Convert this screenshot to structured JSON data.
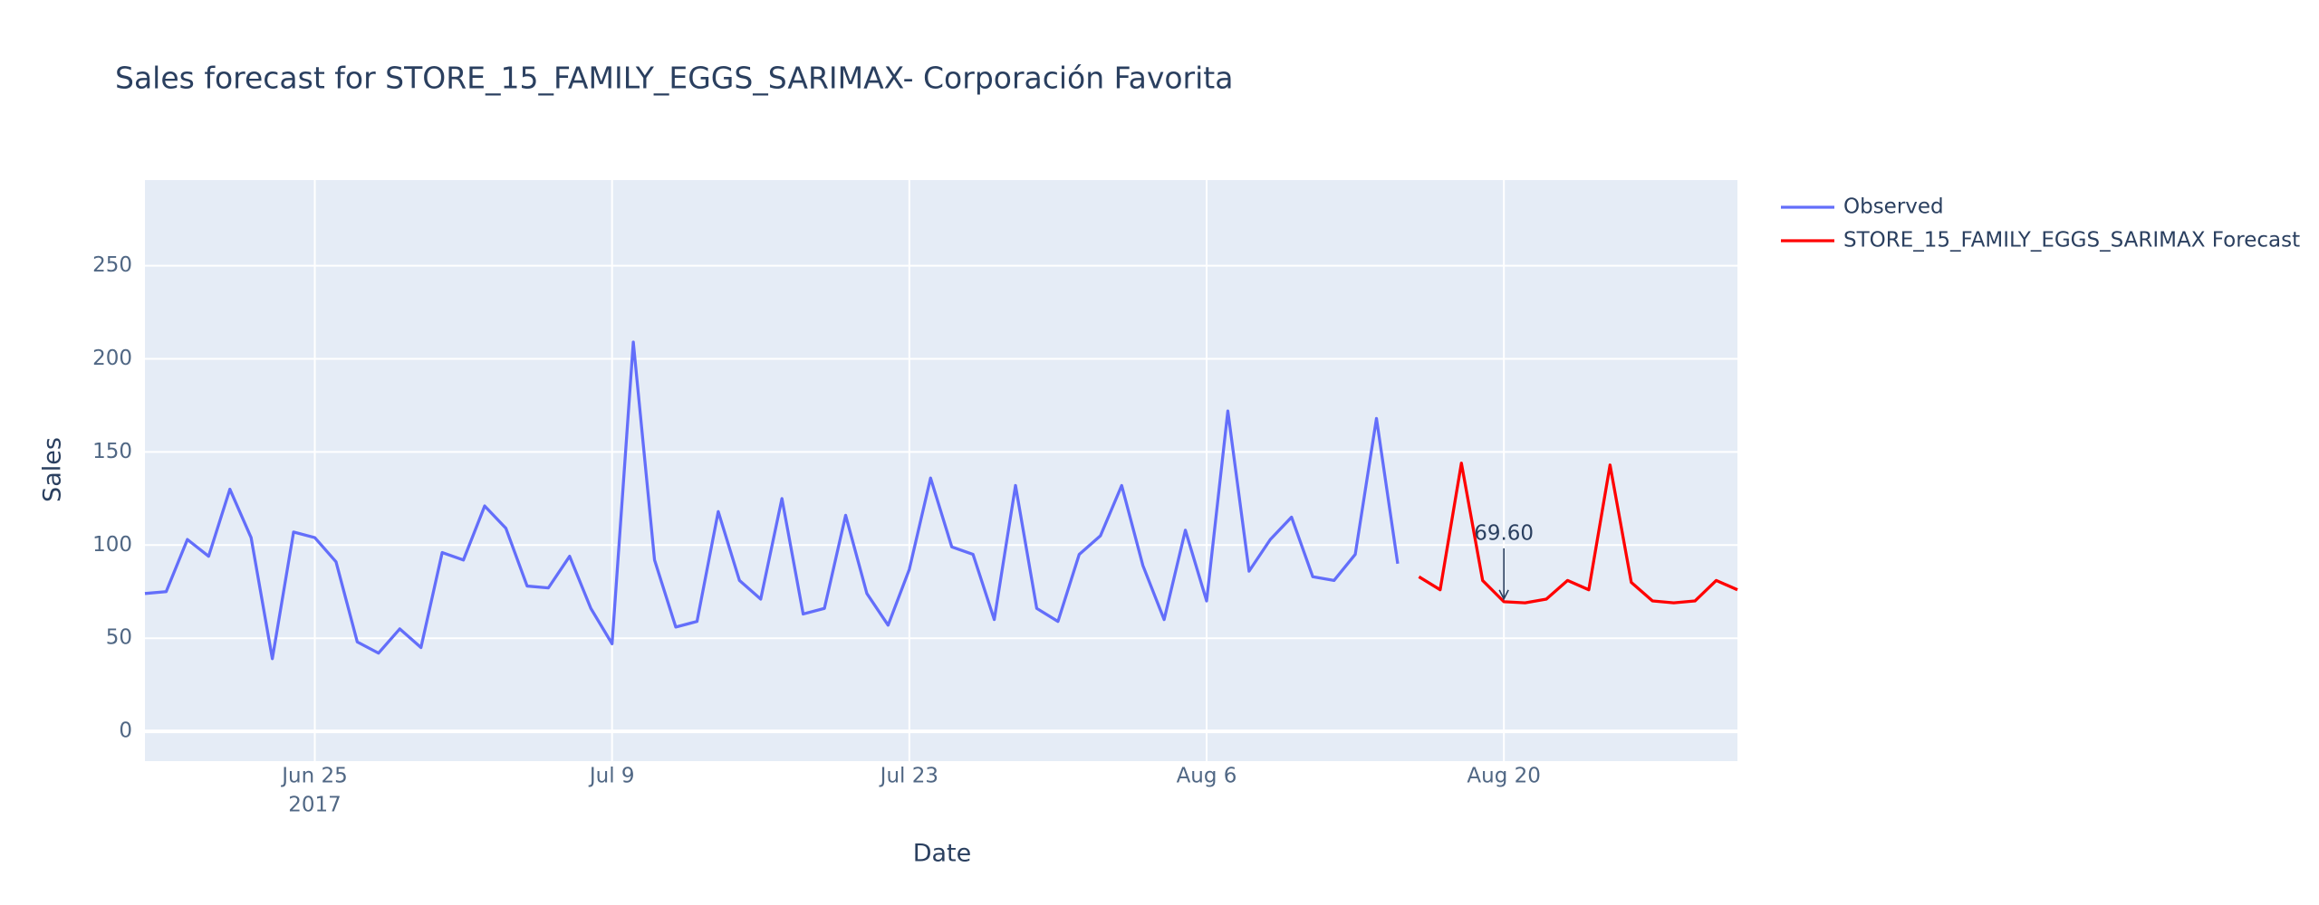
{
  "chart_data": {
    "type": "line",
    "title": "Sales forecast for STORE_15_FAMILY_EGGS_SARIMAX- Corporación Favorita",
    "x_label": "Date",
    "y_label": "Sales",
    "series": [
      {
        "name": "Observed",
        "color": "#636efa",
        "x": [
          "2017-06-17",
          "2017-06-18",
          "2017-06-19",
          "2017-06-20",
          "2017-06-21",
          "2017-06-22",
          "2017-06-23",
          "2017-06-24",
          "2017-06-25",
          "2017-06-26",
          "2017-06-27",
          "2017-06-28",
          "2017-06-29",
          "2017-06-30",
          "2017-07-01",
          "2017-07-02",
          "2017-07-03",
          "2017-07-04",
          "2017-07-05",
          "2017-07-06",
          "2017-07-07",
          "2017-07-08",
          "2017-07-09",
          "2017-07-10",
          "2017-07-11",
          "2017-07-12",
          "2017-07-13",
          "2017-07-14",
          "2017-07-15",
          "2017-07-16",
          "2017-07-17",
          "2017-07-18",
          "2017-07-19",
          "2017-07-20",
          "2017-07-21",
          "2017-07-22",
          "2017-07-23",
          "2017-07-24",
          "2017-07-25",
          "2017-07-26",
          "2017-07-27",
          "2017-07-28",
          "2017-07-29",
          "2017-07-30",
          "2017-07-31",
          "2017-08-01",
          "2017-08-02",
          "2017-08-03",
          "2017-08-04",
          "2017-08-05",
          "2017-08-06",
          "2017-08-07",
          "2017-08-08",
          "2017-08-09",
          "2017-08-10",
          "2017-08-11",
          "2017-08-12",
          "2017-08-13",
          "2017-08-14",
          "2017-08-15"
        ],
        "values": [
          74,
          75,
          103,
          94,
          130,
          104,
          39,
          107,
          104,
          91,
          48,
          42,
          55,
          45,
          96,
          92,
          121,
          109,
          78,
          77,
          94,
          66,
          47,
          209,
          92,
          56,
          59,
          118,
          81,
          71,
          125,
          63,
          66,
          116,
          74,
          57,
          87,
          136,
          99,
          95,
          60,
          132,
          66,
          59,
          95,
          105,
          132,
          89,
          60,
          108,
          70,
          172,
          86,
          103,
          115,
          83,
          81,
          95,
          168,
          90
        ]
      },
      {
        "name": "STORE_15_FAMILY_EGGS_SARIMAX Forecast",
        "color": "#ff0000",
        "x": [
          "2017-08-16",
          "2017-08-17",
          "2017-08-18",
          "2017-08-19",
          "2017-08-20",
          "2017-08-21",
          "2017-08-22",
          "2017-08-23",
          "2017-08-24",
          "2017-08-25",
          "2017-08-26",
          "2017-08-27",
          "2017-08-28",
          "2017-08-29",
          "2017-08-30",
          "2017-08-31"
        ],
        "values": [
          83,
          76,
          144,
          81,
          69.6,
          69,
          71,
          81,
          76,
          143,
          80,
          70,
          69,
          70,
          81,
          76
        ]
      }
    ],
    "annotation": {
      "text": "69.60",
      "x": "2017-08-20",
      "y": 69.6
    },
    "xlim": [
      "2017-06-17",
      "2017-08-31"
    ],
    "xticks": [
      {
        "value": "2017-06-25",
        "label": "Jun 25",
        "sublabel": "2017"
      },
      {
        "value": "2017-07-09",
        "label": "Jul 9"
      },
      {
        "value": "2017-07-23",
        "label": "Jul 23"
      },
      {
        "value": "2017-08-06",
        "label": "Aug 6"
      },
      {
        "value": "2017-08-20",
        "label": "Aug 20"
      }
    ],
    "ylim": [
      -16,
      296
    ],
    "yticks": [
      0,
      50,
      100,
      150,
      200,
      250
    ],
    "grid": true,
    "legend": "outside-right"
  }
}
